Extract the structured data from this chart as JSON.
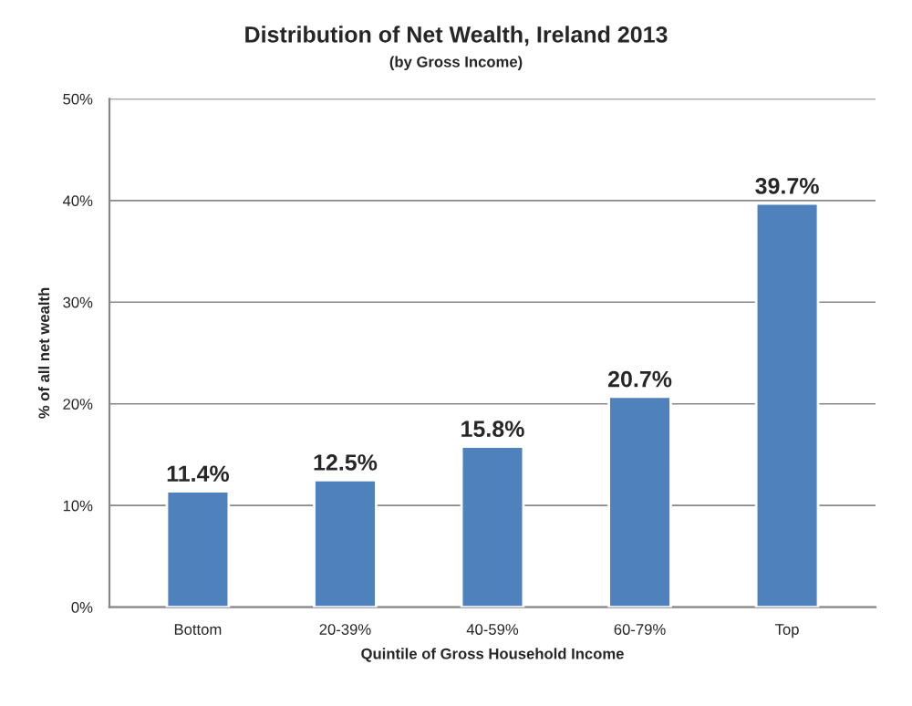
{
  "chart_data": {
    "type": "bar",
    "title": "Distribution of Net Wealth, Ireland 2013",
    "subtitle": "(by Gross Income)",
    "xlabel": "Quintile of Gross Household Income",
    "ylabel": "% of all net wealth",
    "categories": [
      "Bottom",
      "20-39%",
      "40-59%",
      "60-79%",
      "Top"
    ],
    "values": [
      11.4,
      12.5,
      15.8,
      20.7,
      39.7
    ],
    "value_labels": [
      "11.4%",
      "12.5%",
      "15.8%",
      "20.7%",
      "39.7%"
    ],
    "color": "#4f81bd",
    "ylim": [
      0,
      50
    ],
    "yticks": [
      {
        "value": 0,
        "label": "0%"
      },
      {
        "value": 10,
        "label": "10%"
      },
      {
        "value": 20,
        "label": "20%"
      },
      {
        "value": 30,
        "label": "30%"
      },
      {
        "value": 40,
        "label": "40%"
      },
      {
        "value": 50,
        "label": "50%"
      }
    ],
    "grid": "y"
  }
}
